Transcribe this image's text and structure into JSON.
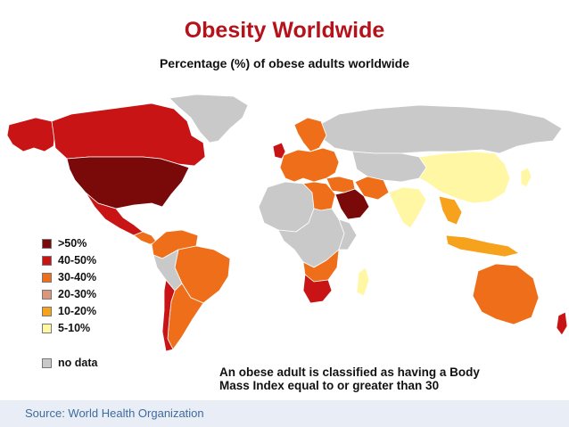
{
  "title": "Obesity Worldwide",
  "subtitle": "Percentage (%) of obese adults worldwide",
  "legend": [
    {
      "label": ">50%",
      "color": "#7a0a0a"
    },
    {
      "label": "40-50%",
      "color": "#c81414"
    },
    {
      "label": "30-40%",
      "color": "#ef6e1a"
    },
    {
      "label": "20-30%",
      "color": "#d9967a"
    },
    {
      "label": "10-20%",
      "color": "#f6a21c"
    },
    {
      "label": "5-10%",
      "color": "#fff7a3"
    }
  ],
  "no_data": {
    "label": "no data",
    "color": "#c9c9c9"
  },
  "note": [
    "An obese adult is classified as having a Body",
    "Mass Index equal to or greater than 30"
  ],
  "source": "Source: World Health Organization",
  "colors": {
    "title": "#b5121b",
    "border": "#ffffff"
  },
  "regions": [
    {
      "name": "canada",
      "class": "40-50%"
    },
    {
      "name": "alaska",
      "class": "40-50%"
    },
    {
      "name": "greenland",
      "class": "no data"
    },
    {
      "name": "usa",
      "class": ">50%"
    },
    {
      "name": "mexico",
      "class": "40-50%"
    },
    {
      "name": "central-america",
      "class": "30-40%"
    },
    {
      "name": "south-america-north",
      "class": "30-40%"
    },
    {
      "name": "brazil",
      "class": "30-40%"
    },
    {
      "name": "south-america-south",
      "class": "no data"
    },
    {
      "name": "argentina",
      "class": "30-40%"
    },
    {
      "name": "chile",
      "class": "40-50%"
    },
    {
      "name": "europe",
      "class": "30-40%"
    },
    {
      "name": "uk",
      "class": "40-50%"
    },
    {
      "name": "scandinavia",
      "class": "30-40%"
    },
    {
      "name": "russia",
      "class": "no data"
    },
    {
      "name": "central-asia",
      "class": "no data"
    },
    {
      "name": "mongolia-china",
      "class": "5-10%"
    },
    {
      "name": "north-africa",
      "class": "no data"
    },
    {
      "name": "libya-egypt",
      "class": "30-40%"
    },
    {
      "name": "middle-east",
      "class": "30-40%"
    },
    {
      "name": "arabia",
      "class": ">50%"
    },
    {
      "name": "iran",
      "class": "30-40%"
    },
    {
      "name": "india",
      "class": "5-10%"
    },
    {
      "name": "southeast-asia",
      "class": "10-20%"
    },
    {
      "name": "japan",
      "class": "5-10%"
    },
    {
      "name": "indonesia",
      "class": "10-20%"
    },
    {
      "name": "central-africa",
      "class": "no data"
    },
    {
      "name": "east-africa",
      "class": "no data"
    },
    {
      "name": "southern-africa",
      "class": "30-40%"
    },
    {
      "name": "south-africa",
      "class": "40-50%"
    },
    {
      "name": "madagascar",
      "class": "5-10%"
    },
    {
      "name": "australia",
      "class": "30-40%"
    },
    {
      "name": "new-zealand",
      "class": "40-50%"
    }
  ]
}
